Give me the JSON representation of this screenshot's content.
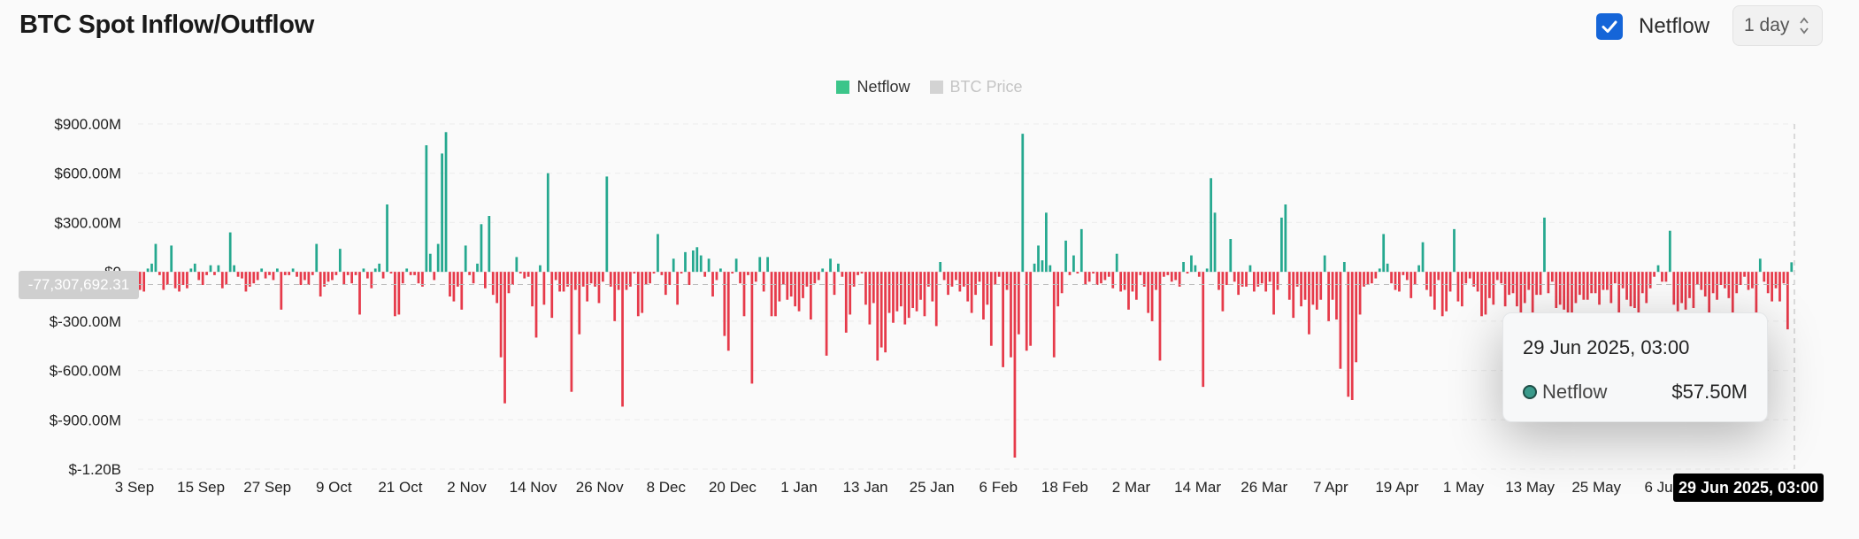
{
  "header": {
    "title": "BTC Spot Inflow/Outflow",
    "toggle_label": "Netflow",
    "interval_value": "1 day"
  },
  "legend": [
    {
      "label": "Netflow",
      "color": "#3cc58a",
      "active": true
    },
    {
      "label": "BTC Price",
      "color": "#d3d3d3",
      "active": false
    }
  ],
  "crosshair": {
    "y_readout": "-77,307,692.31",
    "x_readout": "29 Jun 2025, 03:00"
  },
  "tooltip": {
    "date": "29 Jun 2025, 03:00",
    "series": "Netflow",
    "value": "$57.50M"
  },
  "colors": {
    "positive": "#25a88f",
    "negative": "#e63a4a",
    "checkbox": "#1565d8"
  },
  "chart_data": {
    "type": "bar",
    "title": "BTC Spot Inflow/Outflow",
    "series_name": "Netflow",
    "unit": "USD millions",
    "y_ticks": [
      {
        "value": 900,
        "label": "$900.00M"
      },
      {
        "value": 600,
        "label": "$600.00M"
      },
      {
        "value": 300,
        "label": "$300.00M"
      },
      {
        "value": 0,
        "label": "$0"
      },
      {
        "value": -300,
        "label": "$-300.00M"
      },
      {
        "value": -600,
        "label": "$-600.00M"
      },
      {
        "value": -900,
        "label": "$-900.00M"
      },
      {
        "value": -1200,
        "label": "$-1.20B"
      }
    ],
    "ylim": [
      -1200,
      900
    ],
    "x_ticks": [
      "3 Sep",
      "15 Sep",
      "27 Sep",
      "9 Oct",
      "21 Oct",
      "2 Nov",
      "14 Nov",
      "26 Nov",
      "8 Dec",
      "20 Dec",
      "1 Jan",
      "13 Jan",
      "25 Jan",
      "6 Feb",
      "18 Feb",
      "2 Mar",
      "14 Mar",
      "26 Mar",
      "7 Apr",
      "19 Apr",
      "1 May",
      "13 May",
      "25 May",
      "6 Jun"
    ],
    "x_start": "3 Sep 2024",
    "x_end": "29 Jun 2025",
    "grid": true,
    "legend_position": "top-center",
    "values": [
      -110,
      -120,
      20,
      50,
      170,
      -20,
      -110,
      -80,
      160,
      -100,
      -120,
      -80,
      -100,
      20,
      50,
      -50,
      -80,
      -20,
      40,
      -20,
      40,
      -100,
      -80,
      240,
      40,
      -30,
      -40,
      -120,
      -90,
      -70,
      -50,
      20,
      -40,
      -20,
      -50,
      20,
      -230,
      -20,
      -20,
      20,
      -30,
      -80,
      -50,
      -80,
      -20,
      170,
      -150,
      -90,
      -60,
      -50,
      -20,
      140,
      -80,
      -20,
      -70,
      -20,
      -260,
      20,
      -40,
      -100,
      20,
      50,
      -40,
      410,
      -10,
      -270,
      -260,
      -70,
      20,
      -20,
      -20,
      -70,
      -90,
      770,
      110,
      -50,
      170,
      720,
      850,
      -150,
      -180,
      -90,
      -230,
      160,
      -20,
      -70,
      50,
      290,
      -100,
      340,
      -140,
      -190,
      -520,
      -800,
      -130,
      -80,
      90,
      -10,
      -40,
      -30,
      -210,
      -400,
      40,
      -200,
      600,
      -280,
      -50,
      -120,
      -120,
      -90,
      -730,
      -110,
      -380,
      -90,
      -180,
      -70,
      -90,
      -190,
      -60,
      580,
      -90,
      -300,
      -110,
      -820,
      -110,
      -90,
      -10,
      -270,
      -250,
      -80,
      -70,
      -10,
      230,
      -20,
      -140,
      -80,
      80,
      -200,
      -10,
      120,
      -80,
      130,
      150,
      100,
      -30,
      80,
      -150,
      -50,
      20,
      -390,
      -480,
      -10,
      80,
      -70,
      -270,
      -20,
      -680,
      -60,
      90,
      -120,
      90,
      -270,
      -270,
      -180,
      -80,
      -170,
      -150,
      -210,
      -240,
      -160,
      -90,
      -290,
      -70,
      -50,
      20,
      -510,
      80,
      -140,
      50,
      -30,
      -370,
      -260,
      -90,
      -20,
      -10,
      -200,
      -320,
      -190,
      -540,
      -460,
      -490,
      -250,
      -310,
      -240,
      -210,
      -320,
      -280,
      -220,
      -240,
      -170,
      -270,
      -90,
      -180,
      -330,
      60,
      -50,
      -140,
      -90,
      -50,
      -120,
      -90,
      -180,
      -250,
      -140,
      -60,
      -290,
      -200,
      -450,
      -80,
      -30,
      -580,
      -110,
      -520,
      -1130,
      -380,
      840,
      -480,
      -450,
      50,
      160,
      70,
      360,
      40,
      -520,
      -210,
      -130,
      190,
      -20,
      100,
      -10,
      260,
      -80,
      -60,
      -10,
      -80,
      -70,
      -50,
      -30,
      -100,
      110,
      -120,
      -110,
      -230,
      -120,
      -170,
      -20,
      -90,
      -250,
      -300,
      -110,
      -540,
      -30,
      -20,
      -60,
      -50,
      -90,
      60,
      -10,
      100,
      40,
      -30,
      -700,
      20,
      570,
      360,
      -110,
      -240,
      -80,
      200,
      -60,
      -140,
      -90,
      -90,
      40,
      -120,
      -90,
      -70,
      -120,
      -60,
      -260,
      -110,
      330,
      410,
      -170,
      -280,
      -90,
      -210,
      -170,
      -380,
      -200,
      -230,
      -170,
      100,
      -300,
      -170,
      -290,
      -590,
      60,
      -760,
      -780,
      -550,
      -260,
      -90,
      -80,
      -70,
      -40,
      20,
      230,
      50,
      -70,
      -110,
      -120,
      -20,
      -50,
      -160,
      -80,
      40,
      180,
      -110,
      -150,
      -230,
      -50,
      -270,
      -240,
      -120,
      260,
      -180,
      -210,
      -70,
      -40,
      -90,
      -120,
      -270,
      -260,
      -160,
      -200,
      -50,
      -70,
      -210,
      -140,
      -130,
      -210,
      -250,
      -190,
      -110,
      -280,
      -140,
      -140,
      330,
      -130,
      -60,
      -220,
      -200,
      -230,
      -250,
      -270,
      -190,
      -140,
      -170,
      -170,
      -130,
      -130,
      -200,
      -110,
      -110,
      -190,
      -70,
      -250,
      -100,
      -170,
      -210,
      -220,
      -250,
      -130,
      -190,
      -100,
      -30,
      40,
      -60,
      -60,
      250,
      -200,
      -240,
      -190,
      -230,
      -160,
      -220,
      -80,
      -110,
      -150,
      -270,
      -130,
      -170,
      -80,
      -100,
      -160,
      -310,
      -130,
      -80,
      -30,
      -110,
      -100,
      -310,
      80,
      -60,
      -130,
      -180,
      -100,
      -180,
      -70,
      -350,
      58
    ]
  }
}
